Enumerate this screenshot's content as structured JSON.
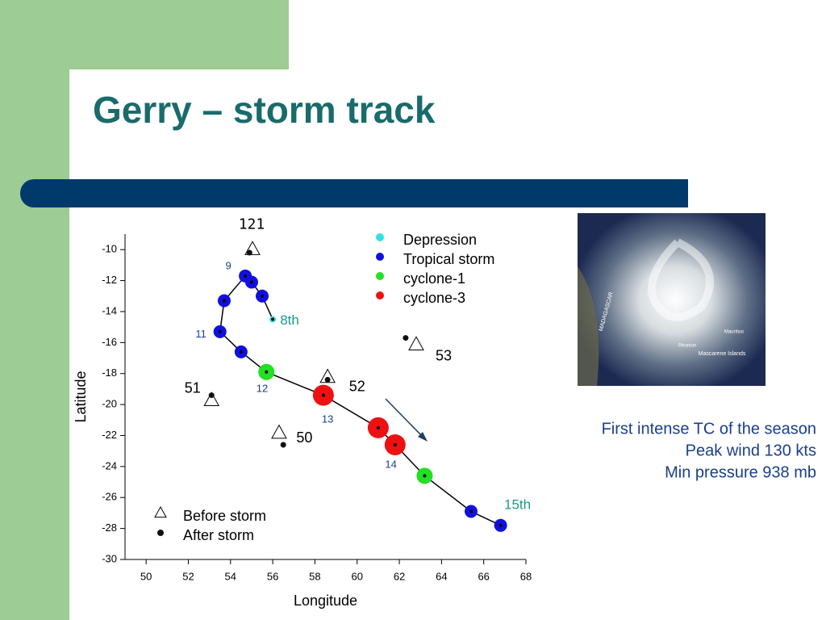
{
  "slide": {
    "title": "Gerry – storm track",
    "info": [
      "First intense TC of the season",
      "Peak wind 130 kts",
      "Min pressure 938 mb"
    ],
    "image_labels": [
      "MADAGASCAR",
      "Mauritius",
      "Réunion",
      "Mascarene Islands"
    ]
  },
  "chart_data": {
    "type": "scatter",
    "xlabel": "Longitude",
    "ylabel": "Latitude",
    "xlim": [
      49,
      68
    ],
    "ylim": [
      -30,
      -9
    ],
    "xticks": [
      50,
      52,
      54,
      56,
      58,
      60,
      62,
      64,
      66,
      68
    ],
    "yticks": [
      -10,
      -12,
      -14,
      -16,
      -18,
      -20,
      -22,
      -24,
      -26,
      -28,
      -30
    ],
    "track": {
      "x": [
        56.0,
        55.5,
        55.0,
        54.7,
        53.7,
        53.5,
        54.5,
        55.7,
        58.4,
        61.0,
        61.8,
        63.2,
        65.4,
        66.8
      ],
      "y": [
        -14.5,
        -13.0,
        -12.1,
        -11.7,
        -13.3,
        -15.3,
        -16.6,
        -17.9,
        -19.4,
        -21.5,
        -22.6,
        -24.6,
        -26.9,
        -27.8
      ]
    },
    "series": [
      {
        "name": "Depression",
        "color": "#33e0e8",
        "size": 4,
        "x": [
          56.0
        ],
        "y": [
          -14.5
        ]
      },
      {
        "name": "Tropical storm",
        "color": "#1010e0",
        "size": 8,
        "x": [
          55.5,
          55.0,
          54.7,
          53.7,
          53.5,
          54.5,
          65.4,
          66.8
        ],
        "y": [
          -13.0,
          -12.1,
          -11.7,
          -13.3,
          -15.3,
          -16.6,
          -26.9,
          -27.8
        ]
      },
      {
        "name": "cyclone-1",
        "color": "#22e022",
        "size": 10,
        "x": [
          55.7,
          63.2
        ],
        "y": [
          -17.9,
          -24.6
        ]
      },
      {
        "name": "cyclone-3",
        "color": "#ee1111",
        "size": 13,
        "x": [
          58.4,
          61.0,
          61.8
        ],
        "y": [
          -19.4,
          -21.5,
          -22.6
        ]
      }
    ],
    "annotations": [
      {
        "text": "8th",
        "x": 56.8,
        "y": -14.6,
        "color": "#1a9a8a",
        "size": 17
      },
      {
        "text": "9",
        "x": 53.9,
        "y": -11.1,
        "color": "#1a3f8a",
        "size": 13
      },
      {
        "text": "11",
        "x": 52.6,
        "y": -15.5,
        "color": "#1a3f8a",
        "size": 13
      },
      {
        "text": "12",
        "x": 55.5,
        "y": -19.0,
        "color": "#1a3f8a",
        "size": 13
      },
      {
        "text": "13",
        "x": 58.6,
        "y": -21.0,
        "color": "#1a3f8a",
        "size": 13
      },
      {
        "text": "14",
        "x": 61.6,
        "y": -23.9,
        "color": "#1a3f8a",
        "size": 13
      },
      {
        "text": "15th",
        "x": 67.6,
        "y": -26.5,
        "color": "#1a9a8a",
        "size": 17
      }
    ],
    "station_legend": [
      "Before storm",
      "After storm"
    ],
    "stations": [
      {
        "label": "121",
        "before": [
          55.04,
          -9.95
        ],
        "after": [
          54.9,
          -10.2
        ],
        "label_at": [
          55.0,
          -8.4
        ]
      },
      {
        "label": "53",
        "before": [
          62.8,
          -16.1
        ],
        "after": [
          62.3,
          -15.7
        ],
        "label_at": [
          64.1,
          -16.9
        ]
      },
      {
        "label": "52",
        "before": [
          58.6,
          -18.2
        ],
        "after": [
          58.6,
          -18.4
        ],
        "label_at": [
          60.0,
          -18.9
        ]
      },
      {
        "label": "51",
        "before": [
          53.1,
          -19.7
        ],
        "after": [
          53.1,
          -19.4
        ],
        "label_at": [
          52.2,
          -19.0
        ]
      },
      {
        "label": "50",
        "before": [
          56.3,
          -21.8
        ],
        "after": [
          56.5,
          -22.6
        ],
        "label_at": [
          57.5,
          -22.2
        ]
      }
    ]
  }
}
